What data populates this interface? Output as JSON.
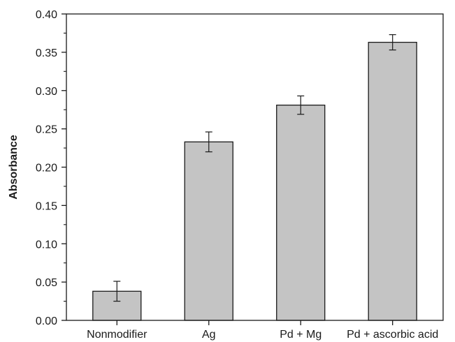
{
  "chart_data": {
    "type": "bar",
    "title": "",
    "xlabel": "",
    "ylabel": "Absorbance",
    "categories": [
      "Nonmodifier",
      "Ag",
      "Pd + Mg",
      "Pd + ascorbic acid"
    ],
    "values": [
      0.038,
      0.233,
      0.281,
      0.363
    ],
    "errors": [
      0.013,
      0.013,
      0.012,
      0.01
    ],
    "ylim": [
      0.0,
      0.4
    ],
    "yticks": [
      "0.00",
      "0.05",
      "0.10",
      "0.15",
      "0.20",
      "0.25",
      "0.30",
      "0.35",
      "0.40"
    ],
    "grid": false,
    "legend": "none",
    "colors": {
      "bar_fill": "#c4c4c4",
      "bar_stroke": "#1a1a1a",
      "axis": "#1a1a1a"
    }
  }
}
